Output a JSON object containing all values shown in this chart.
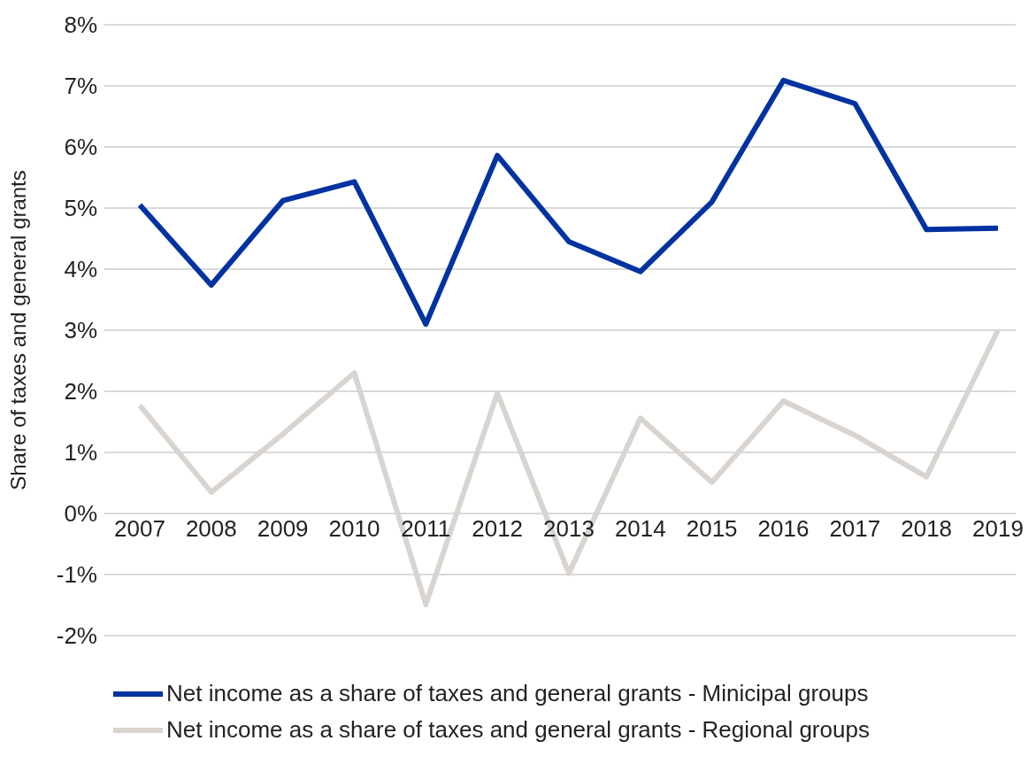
{
  "chart_data": {
    "type": "line",
    "ylabel": "Share of taxes and general grants",
    "categories": [
      "2007",
      "2008",
      "2009",
      "2010",
      "2011",
      "2012",
      "2013",
      "2014",
      "2015",
      "2016",
      "2017",
      "2018",
      "2019"
    ],
    "series": [
      {
        "name": "Net income as a share of taxes and general grants - Minicipal groups",
        "color": "#0033a0",
        "values": [
          5.05,
          3.74,
          5.12,
          5.43,
          3.1,
          5.86,
          4.45,
          3.96,
          5.1,
          7.09,
          6.71,
          4.65,
          4.67
        ]
      },
      {
        "name": "Net income as a share of taxes and general grants - Regional groups",
        "color": "#d9d4cf",
        "values": [
          1.77,
          0.35,
          1.3,
          2.3,
          -1.49,
          1.97,
          -0.98,
          1.56,
          0.51,
          1.84,
          1.28,
          0.6,
          3.0
        ]
      }
    ],
    "ylim": [
      -2,
      8
    ],
    "yticks": [
      {
        "value": -2,
        "label": "-2%"
      },
      {
        "value": -1,
        "label": "-1%"
      },
      {
        "value": 0,
        "label": "0%"
      },
      {
        "value": 1,
        "label": "1%"
      },
      {
        "value": 2,
        "label": "2%"
      },
      {
        "value": 3,
        "label": "3%"
      },
      {
        "value": 4,
        "label": "4%"
      },
      {
        "value": 5,
        "label": "5%"
      },
      {
        "value": 6,
        "label": "6%"
      },
      {
        "value": 7,
        "label": "7%"
      },
      {
        "value": 8,
        "label": "8%"
      }
    ],
    "grid": "y",
    "legend": "bottom",
    "marker": "none",
    "line_style": "solid"
  }
}
